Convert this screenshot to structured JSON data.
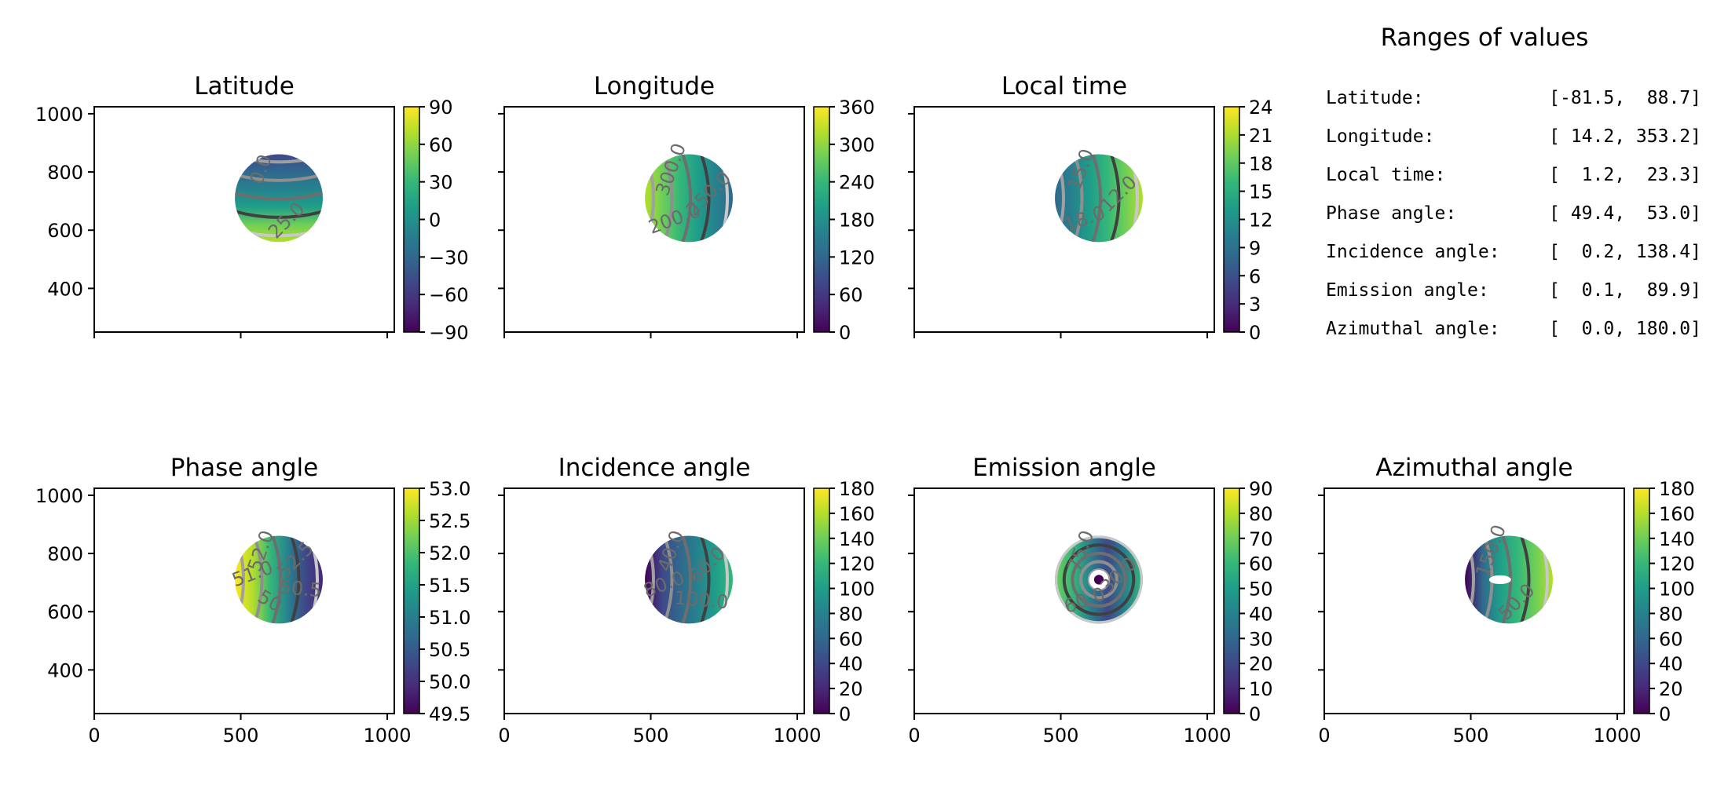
{
  "chart_data": [
    {
      "type": "heatmap",
      "title": "Latitude",
      "xlim": [
        0,
        1024
      ],
      "ylim": [
        250,
        1024
      ],
      "x_ticks": [
        0,
        500,
        1000
      ],
      "x_tick_labels_shown": false,
      "y_ticks": [
        400,
        600,
        800,
        1000
      ],
      "y_tick_labels_shown": true,
      "disk": {
        "center_x": 630,
        "center_y": 710,
        "radius": 150
      },
      "colorbar": {
        "min": -90,
        "max": 90,
        "ticks": [
          "90",
          "60",
          "30",
          "0",
          "−30",
          "−60",
          "−90"
        ]
      },
      "contour_labels": [
        "0.0",
        "25.0"
      ]
    },
    {
      "type": "heatmap",
      "title": "Longitude",
      "xlim": [
        0,
        1024
      ],
      "ylim": [
        250,
        1024
      ],
      "x_ticks": [
        0,
        500,
        1000
      ],
      "x_tick_labels_shown": false,
      "y_ticks": [
        400,
        600,
        800,
        1000
      ],
      "y_tick_labels_shown": false,
      "disk": {
        "center_x": 630,
        "center_y": 710,
        "radius": 150
      },
      "colorbar": {
        "min": 0,
        "max": 360,
        "ticks": [
          "360",
          "300",
          "240",
          "180",
          "120",
          "60",
          "0"
        ]
      },
      "contour_labels": [
        "300.0",
        "250.0",
        "200.0"
      ]
    },
    {
      "type": "heatmap",
      "title": "Local time",
      "xlim": [
        0,
        1024
      ],
      "ylim": [
        250,
        1024
      ],
      "x_ticks": [
        0,
        500,
        1000
      ],
      "x_tick_labels_shown": false,
      "y_ticks": [
        400,
        600,
        800,
        1000
      ],
      "y_tick_labels_shown": false,
      "disk": {
        "center_x": 630,
        "center_y": 710,
        "radius": 150
      },
      "colorbar": {
        "min": 0,
        "max": 24,
        "ticks": [
          "24",
          "21",
          "18",
          "15",
          "12",
          "9",
          "6",
          "3",
          "0"
        ]
      },
      "contour_labels": [
        "15.0",
        "12.0",
        "18.0"
      ]
    },
    {
      "type": "heatmap",
      "title": "Phase angle",
      "xlim": [
        0,
        1024
      ],
      "ylim": [
        250,
        1024
      ],
      "x_ticks": [
        0,
        500,
        1000
      ],
      "x_tick_labels_shown": true,
      "x_tick_labels": [
        "0",
        "500",
        "1000"
      ],
      "y_ticks": [
        400,
        600,
        800,
        1000
      ],
      "y_tick_labels_shown": true,
      "disk": {
        "center_x": 630,
        "center_y": 710,
        "radius": 150
      },
      "colorbar": {
        "min": 49.4,
        "max": 53.0,
        "ticks": [
          "53.0",
          "52.5",
          "52.0",
          "51.5",
          "51.0",
          "50.5",
          "50.0",
          "49.5"
        ]
      },
      "contour_labels": [
        "52.0",
        "52.5",
        "51.0",
        "50.5",
        "50"
      ]
    },
    {
      "type": "heatmap",
      "title": "Incidence angle",
      "xlim": [
        0,
        1024
      ],
      "ylim": [
        250,
        1024
      ],
      "x_ticks": [
        0,
        500,
        1000
      ],
      "x_tick_labels_shown": true,
      "x_tick_labels": [
        "0",
        "500",
        "1000"
      ],
      "y_ticks": [
        400,
        600,
        800,
        1000
      ],
      "y_tick_labels_shown": false,
      "disk": {
        "center_x": 630,
        "center_y": 710,
        "radius": 150
      },
      "colorbar": {
        "min": 0,
        "max": 180,
        "ticks": [
          "180",
          "160",
          "140",
          "120",
          "100",
          "80",
          "60",
          "40",
          "20",
          "0"
        ]
      },
      "contour_labels": [
        "40.0",
        "60.0",
        "80.0",
        "100.0"
      ]
    },
    {
      "type": "heatmap",
      "title": "Emission angle",
      "xlim": [
        0,
        1024
      ],
      "ylim": [
        250,
        1024
      ],
      "x_ticks": [
        0,
        500,
        1000
      ],
      "x_tick_labels_shown": true,
      "x_tick_labels": [
        "0",
        "500",
        "1000"
      ],
      "y_ticks": [
        400,
        600,
        800,
        1000
      ],
      "y_tick_labels_shown": false,
      "disk": {
        "center_x": 630,
        "center_y": 710,
        "radius": 150
      },
      "colorbar": {
        "min": 0,
        "max": 90,
        "ticks": [
          "90",
          "80",
          "70",
          "60",
          "50",
          "40",
          "30",
          "20",
          "10",
          "0"
        ]
      },
      "contour_labels": [
        "75.0",
        "30.0",
        "60.0"
      ]
    },
    {
      "type": "heatmap",
      "title": "Azimuthal angle",
      "xlim": [
        0,
        1024
      ],
      "ylim": [
        250,
        1024
      ],
      "x_ticks": [
        0,
        500,
        1000
      ],
      "x_tick_labels_shown": true,
      "x_tick_labels": [
        "0",
        "500",
        "1000"
      ],
      "y_ticks": [
        400,
        600,
        800,
        1000
      ],
      "y_tick_labels_shown": false,
      "disk": {
        "center_x": 630,
        "center_y": 710,
        "radius": 150
      },
      "colorbar": {
        "min": 0,
        "max": 180,
        "ticks": [
          "180",
          "160",
          "140",
          "120",
          "100",
          "80",
          "60",
          "40",
          "20",
          "0"
        ]
      },
      "contour_labels": [
        "150.0",
        "50.0"
      ]
    }
  ],
  "ranges": {
    "title": "Ranges of values",
    "rows": [
      {
        "name": "Latitude:",
        "value": "[-81.5,  88.7]"
      },
      {
        "name": "Longitude:",
        "value": "[ 14.2, 353.2]"
      },
      {
        "name": "Local time:",
        "value": "[  1.2,  23.3]"
      },
      {
        "name": "Phase angle:",
        "value": "[ 49.4,  53.0]"
      },
      {
        "name": "Incidence angle:",
        "value": "[  0.2, 138.4]"
      },
      {
        "name": "Emission angle:",
        "value": "[  0.1,  89.9]"
      },
      {
        "name": "Azimuthal angle:",
        "value": "[  0.0, 180.0]"
      }
    ]
  },
  "colormap": [
    "#440154",
    "#482878",
    "#3e4989",
    "#31688e",
    "#26828e",
    "#1f9e89",
    "#35b779",
    "#6ece58",
    "#b5de2b",
    "#fde725"
  ]
}
